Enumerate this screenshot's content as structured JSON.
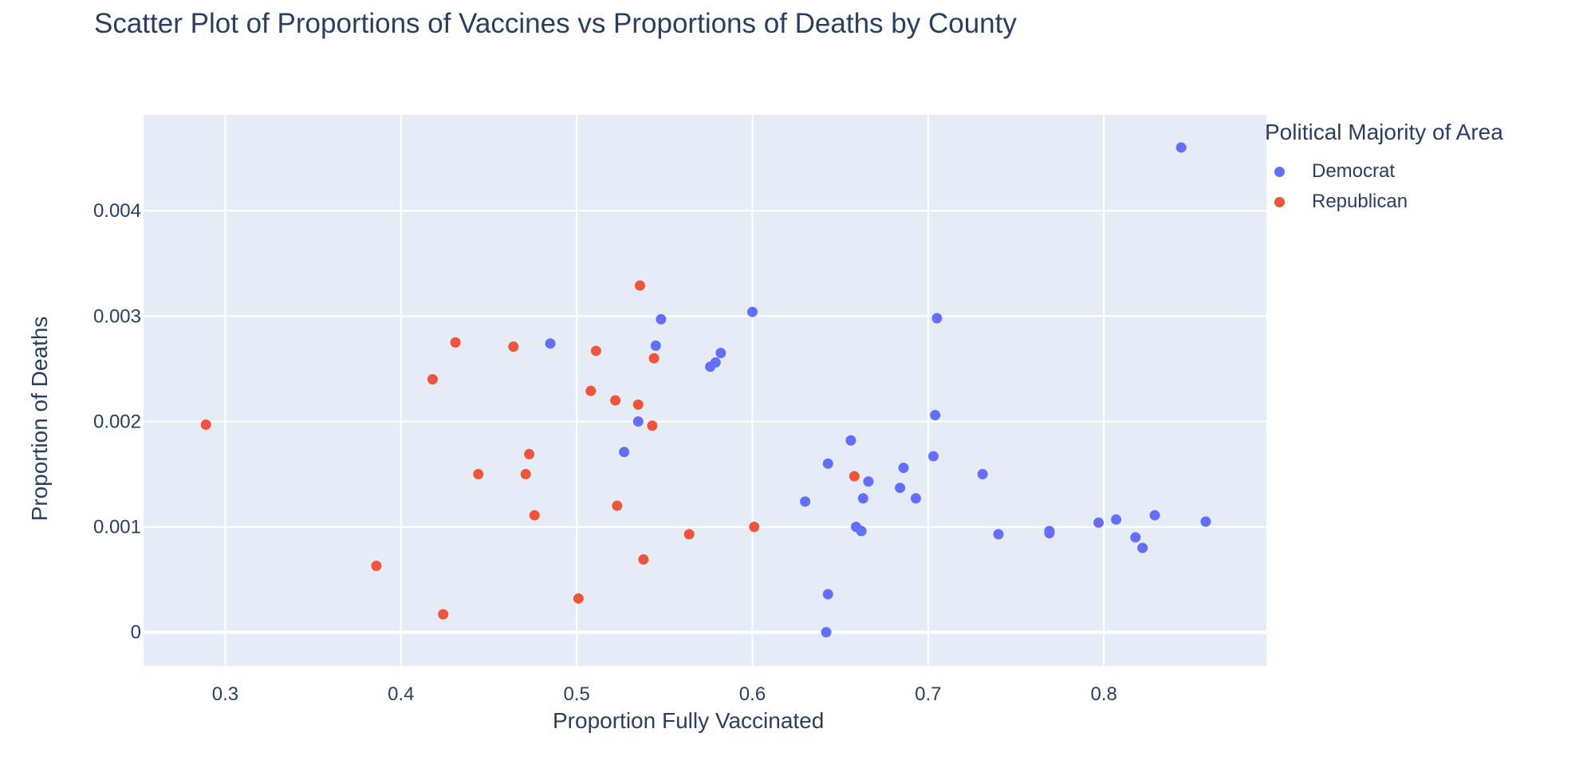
{
  "chart_data": {
    "type": "scatter",
    "title": "Scatter Plot of Proportions of Vaccines vs Proportions of Deaths by County",
    "xlabel": "Proportion Fully Vaccinated",
    "ylabel": "Proportion of Deaths",
    "xlim": [
      0.2535,
      0.8925
    ],
    "ylim": [
      -0.00032,
      0.00491
    ],
    "x_ticks": [
      0.3,
      0.4,
      0.5,
      0.6,
      0.7,
      0.8
    ],
    "x_tick_labels": [
      "0.3",
      "0.4",
      "0.5",
      "0.6",
      "0.7",
      "0.8"
    ],
    "y_ticks": [
      0,
      0.001,
      0.002,
      0.003,
      0.004
    ],
    "y_tick_labels": [
      "0",
      "0.001",
      "0.002",
      "0.003",
      "0.004"
    ],
    "grid": true,
    "legend_title": "Political Majority of Area",
    "legend_position": "right",
    "series": [
      {
        "name": "Democrat",
        "color": "#636efa",
        "points": [
          [
            0.844,
            0.0046
          ],
          [
            0.485,
            0.00274
          ],
          [
            0.548,
            0.00297
          ],
          [
            0.545,
            0.00272
          ],
          [
            0.6,
            0.00304
          ],
          [
            0.582,
            0.00265
          ],
          [
            0.579,
            0.00256
          ],
          [
            0.576,
            0.00252
          ],
          [
            0.705,
            0.00298
          ],
          [
            0.535,
            0.002
          ],
          [
            0.527,
            0.00171
          ],
          [
            0.704,
            0.00206
          ],
          [
            0.656,
            0.00182
          ],
          [
            0.703,
            0.00167
          ],
          [
            0.643,
            0.0016
          ],
          [
            0.686,
            0.00156
          ],
          [
            0.666,
            0.00143
          ],
          [
            0.731,
            0.0015
          ],
          [
            0.684,
            0.00137
          ],
          [
            0.663,
            0.00127
          ],
          [
            0.693,
            0.00127
          ],
          [
            0.63,
            0.00124
          ],
          [
            0.659,
            0.001
          ],
          [
            0.662,
            0.00096
          ],
          [
            0.74,
            0.00093
          ],
          [
            0.769,
            0.00094
          ],
          [
            0.769,
            0.00096
          ],
          [
            0.797,
            0.00104
          ],
          [
            0.807,
            0.00107
          ],
          [
            0.829,
            0.00111
          ],
          [
            0.818,
            0.0009
          ],
          [
            0.822,
            0.0008
          ],
          [
            0.858,
            0.00105
          ],
          [
            0.643,
            0.00036
          ],
          [
            0.642,
            0.0
          ]
        ]
      },
      {
        "name": "Republican",
        "color": "#ef553b",
        "points": [
          [
            0.289,
            0.00197
          ],
          [
            0.386,
            0.00063
          ],
          [
            0.418,
            0.0024
          ],
          [
            0.424,
            0.00017
          ],
          [
            0.431,
            0.00275
          ],
          [
            0.444,
            0.0015
          ],
          [
            0.464,
            0.00271
          ],
          [
            0.471,
            0.0015
          ],
          [
            0.473,
            0.00169
          ],
          [
            0.476,
            0.00111
          ],
          [
            0.501,
            0.00032
          ],
          [
            0.508,
            0.00229
          ],
          [
            0.511,
            0.00267
          ],
          [
            0.522,
            0.0022
          ],
          [
            0.523,
            0.0012
          ],
          [
            0.535,
            0.00216
          ],
          [
            0.536,
            0.00329
          ],
          [
            0.538,
            0.00069
          ],
          [
            0.543,
            0.00196
          ],
          [
            0.544,
            0.0026
          ],
          [
            0.564,
            0.00093
          ],
          [
            0.601,
            0.001
          ],
          [
            0.658,
            0.00148
          ]
        ]
      }
    ]
  }
}
